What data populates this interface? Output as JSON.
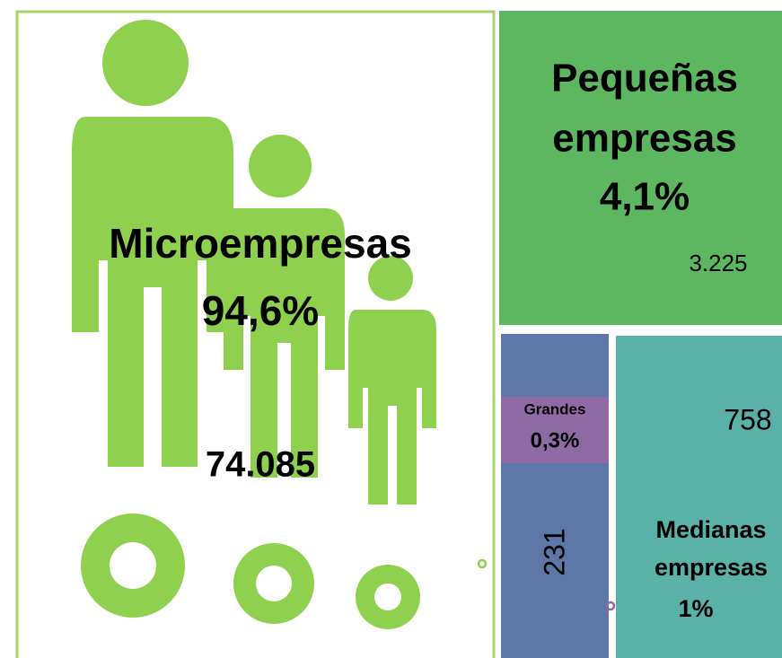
{
  "segments": [
    {
      "label": "Microempresas",
      "percent": "94,6%",
      "count": "74.085"
    },
    {
      "label_lines": [
        "Pequeñas",
        "empresas"
      ],
      "percent": "4,1%",
      "count": "3.225"
    },
    {
      "label": "Grandes",
      "percent": "0,3%",
      "count": "231"
    },
    {
      "label_lines": [
        "Medianas",
        "empresas"
      ],
      "percent": "1%",
      "count": "758"
    }
  ]
}
